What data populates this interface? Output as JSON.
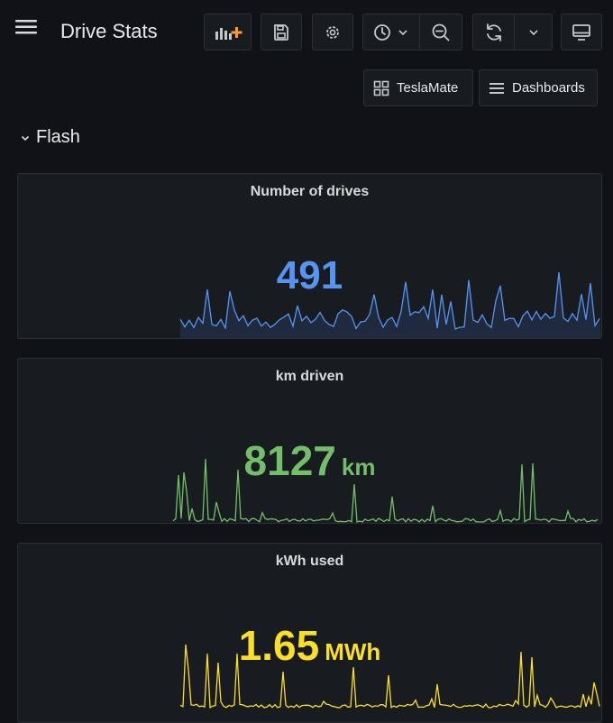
{
  "header": {
    "title": "Drive Stats",
    "icons": [
      "menu-icon",
      "add-panel-icon",
      "save-icon",
      "gear-icon",
      "clock-icon",
      "chevron-down-icon",
      "zoom-out-icon",
      "refresh-icon",
      "chevron-down-icon",
      "tv-icon"
    ]
  },
  "links": [
    {
      "label": "TeslaMate",
      "icon": "grid-icon"
    },
    {
      "label": "Dashboards",
      "icon": "list-icon"
    }
  ],
  "row": {
    "title": "Flash"
  },
  "panels": [
    {
      "title": "Number of drives",
      "value": "491",
      "unit": "",
      "color": "#5794f2",
      "fill": "#1f2a3f"
    },
    {
      "title": "km driven",
      "value": "8127",
      "unit": "km",
      "color": "#73bf69",
      "fill": ""
    },
    {
      "title": "kWh used",
      "value": "1.65",
      "unit": "MWh",
      "color": "#fade2a",
      "fill": ""
    }
  ],
  "colors": {
    "background": "#111217",
    "panel": "#181b1f",
    "border": "#2c3036",
    "accent": "#ff9830"
  }
}
